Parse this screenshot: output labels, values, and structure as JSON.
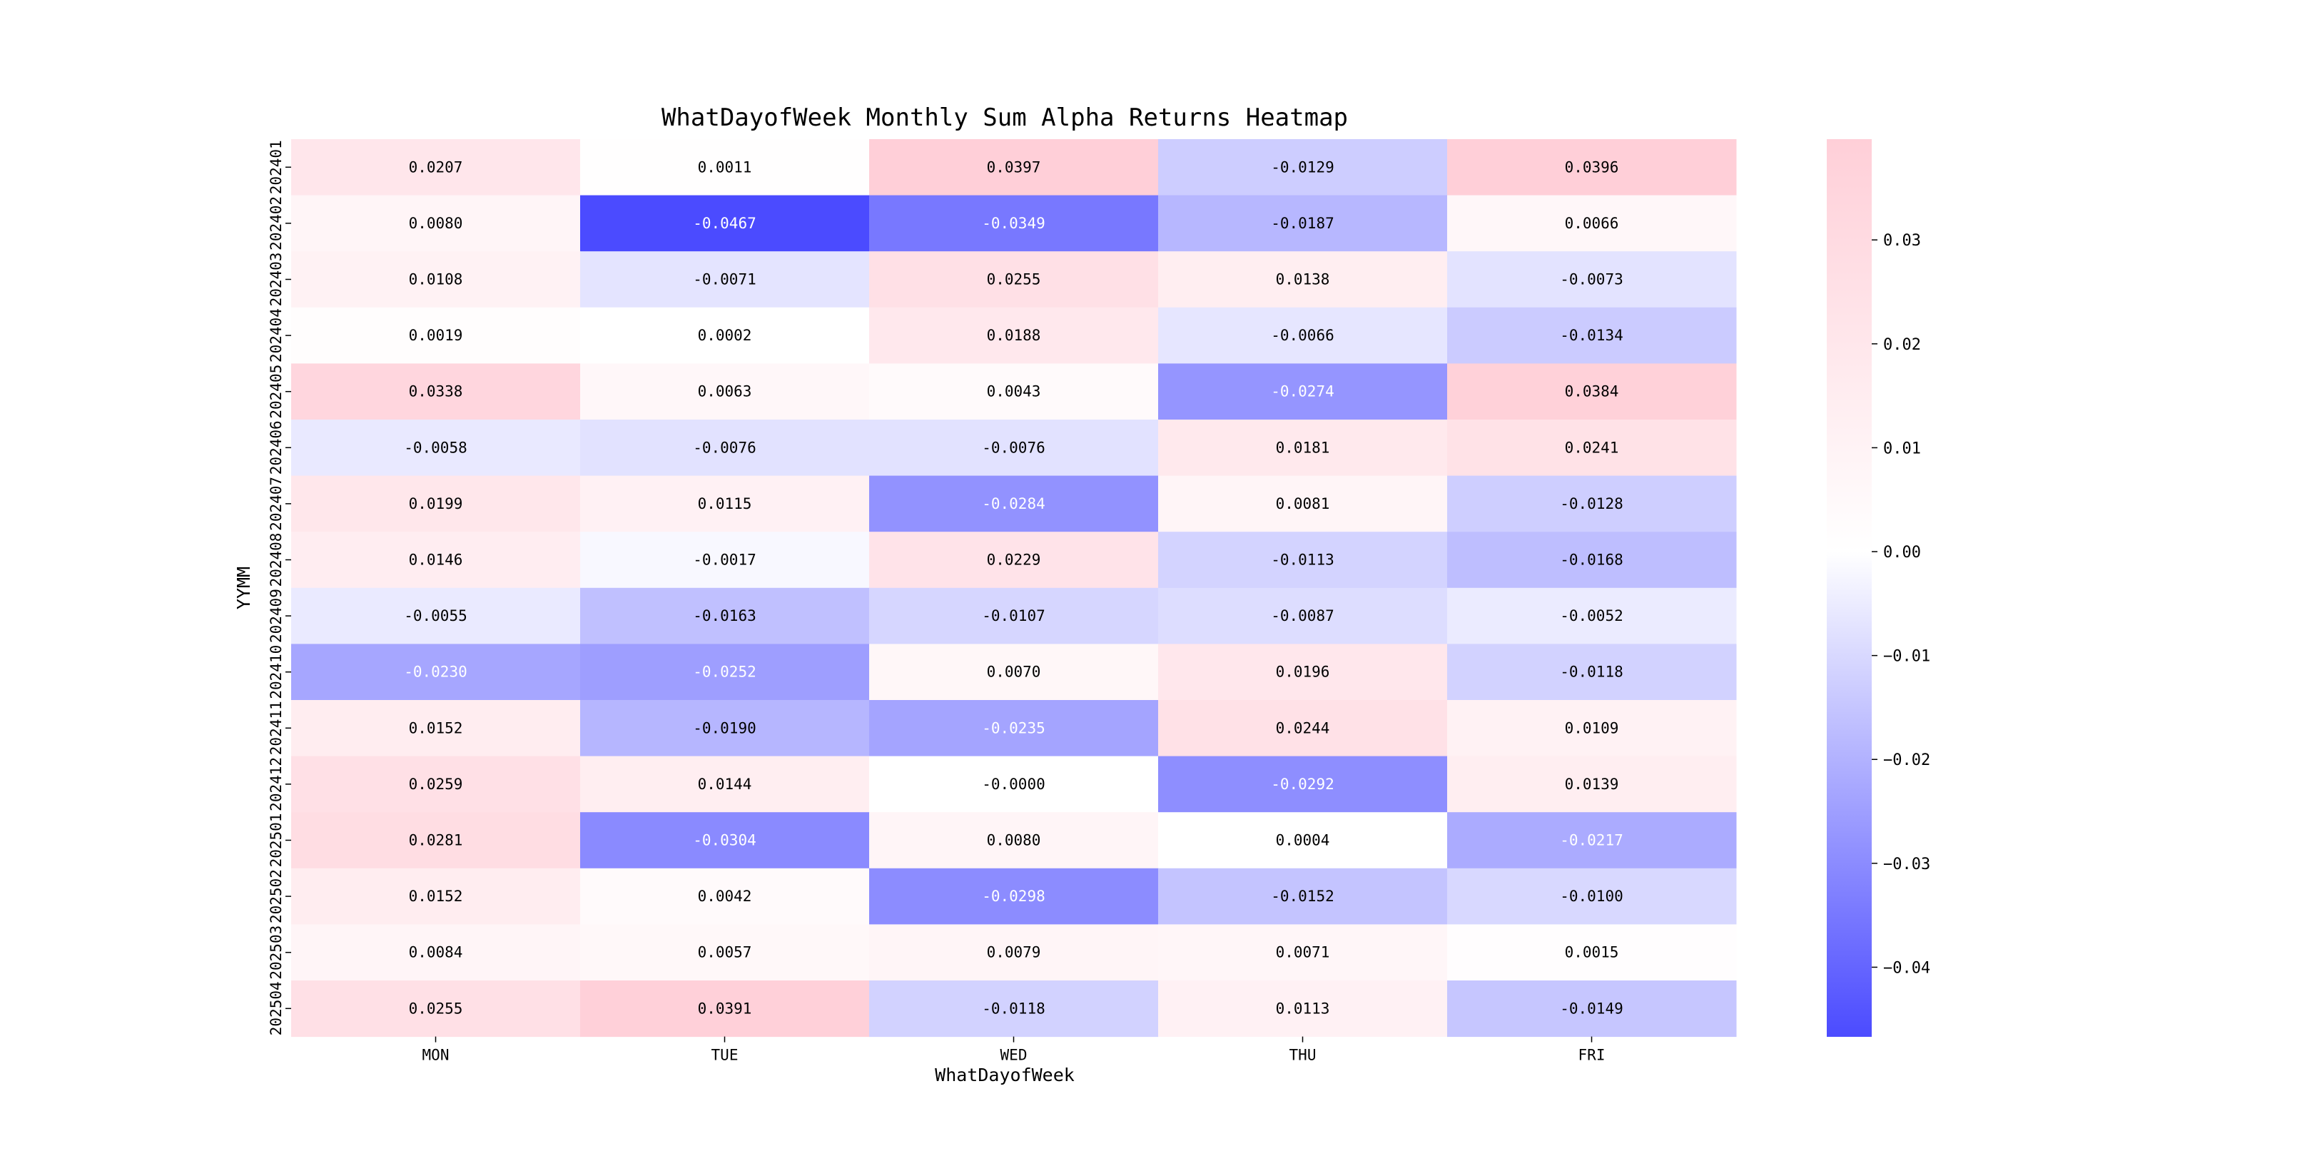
{
  "chart_data": {
    "type": "heatmap",
    "title": "WhatDayofWeek Monthly Sum Alpha Returns Heatmap",
    "xlabel": "WhatDayofWeek",
    "ylabel": "YYMM",
    "columns": [
      "MON",
      "TUE",
      "WED",
      "THU",
      "FRI"
    ],
    "rows": [
      "202401",
      "202402",
      "202403",
      "202404",
      "202405",
      "202406",
      "202407",
      "202408",
      "202409",
      "202410",
      "202411",
      "202412",
      "202501",
      "202502",
      "202503",
      "202504"
    ],
    "values": [
      [
        0.0207,
        0.0011,
        0.0397,
        -0.0129,
        0.0396
      ],
      [
        0.008,
        -0.0467,
        -0.0349,
        -0.0187,
        0.0066
      ],
      [
        0.0108,
        -0.0071,
        0.0255,
        0.0138,
        -0.0073
      ],
      [
        0.0019,
        0.0002,
        0.0188,
        -0.0066,
        -0.0134
      ],
      [
        0.0338,
        0.0063,
        0.0043,
        -0.0274,
        0.0384
      ],
      [
        -0.0058,
        -0.0076,
        -0.0076,
        0.0181,
        0.0241
      ],
      [
        0.0199,
        0.0115,
        -0.0284,
        0.0081,
        -0.0128
      ],
      [
        0.0146,
        -0.0017,
        0.0229,
        -0.0113,
        -0.0168
      ],
      [
        -0.0055,
        -0.0163,
        -0.0107,
        -0.0087,
        -0.0052
      ],
      [
        -0.023,
        -0.0252,
        0.007,
        0.0196,
        -0.0118
      ],
      [
        0.0152,
        -0.019,
        -0.0235,
        0.0244,
        0.0109
      ],
      [
        0.0259,
        0.0144,
        -0.0,
        -0.0292,
        0.0139
      ],
      [
        0.0281,
        -0.0304,
        0.008,
        0.0004,
        -0.0217
      ],
      [
        0.0152,
        0.0042,
        -0.0298,
        -0.0152,
        -0.01
      ],
      [
        0.0084,
        0.0057,
        0.0079,
        0.0071,
        0.0015
      ],
      [
        0.0255,
        0.0391,
        -0.0118,
        0.0113,
        -0.0149
      ]
    ],
    "value_labels": [
      [
        "0.0207",
        "0.0011",
        "0.0397",
        "-0.0129",
        "0.0396"
      ],
      [
        "0.0080",
        "-0.0467",
        "-0.0349",
        "-0.0187",
        "0.0066"
      ],
      [
        "0.0108",
        "-0.0071",
        "0.0255",
        "0.0138",
        "-0.0073"
      ],
      [
        "0.0019",
        "0.0002",
        "0.0188",
        "-0.0066",
        "-0.0134"
      ],
      [
        "0.0338",
        "0.0063",
        "0.0043",
        "-0.0274",
        "0.0384"
      ],
      [
        "-0.0058",
        "-0.0076",
        "-0.0076",
        "0.0181",
        "0.0241"
      ],
      [
        "0.0199",
        "0.0115",
        "-0.0284",
        "0.0081",
        "-0.0128"
      ],
      [
        "0.0146",
        "-0.0017",
        "0.0229",
        "-0.0113",
        "-0.0168"
      ],
      [
        "-0.0055",
        "-0.0163",
        "-0.0107",
        "-0.0087",
        "-0.0052"
      ],
      [
        "-0.0230",
        "-0.0252",
        "0.0070",
        "0.0196",
        "-0.0118"
      ],
      [
        "0.0152",
        "-0.0190",
        "-0.0235",
        "0.0244",
        "0.0109"
      ],
      [
        "0.0259",
        "0.0144",
        "-0.0000",
        "-0.0292",
        "0.0139"
      ],
      [
        "0.0281",
        "-0.0304",
        "0.0080",
        "0.0004",
        "-0.0217"
      ],
      [
        "0.0152",
        "0.0042",
        "-0.0298",
        "-0.0152",
        "-0.0100"
      ],
      [
        "0.0084",
        "0.0057",
        "0.0079",
        "0.0071",
        "0.0015"
      ],
      [
        "0.0255",
        "0.0391",
        "-0.0118",
        "0.0113",
        "-0.0149"
      ]
    ],
    "colorbar": {
      "vmin": -0.0467,
      "vmax": 0.0397,
      "center": 0.0,
      "ticks": [
        0.03,
        0.02,
        0.01,
        0.0,
        -0.01,
        -0.02,
        -0.03,
        -0.04
      ],
      "tick_labels": [
        "0.03",
        "0.02",
        "0.01",
        "0.00",
        "−0.01",
        "−0.02",
        "−0.03",
        "−0.04"
      ],
      "colors": {
        "low": "#4b4bff",
        "mid": "#ffffff",
        "high": "#ffcfd8"
      }
    }
  }
}
